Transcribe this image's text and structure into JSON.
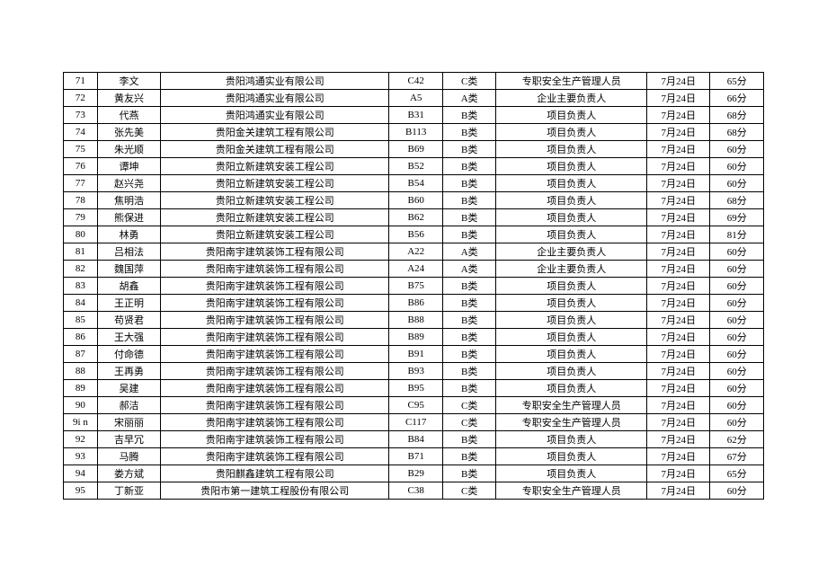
{
  "table": {
    "columns": [
      "idx",
      "name",
      "company",
      "code",
      "category",
      "role",
      "date",
      "score"
    ],
    "col_align": [
      "center",
      "center",
      "center",
      "center",
      "center",
      "center",
      "center",
      "center"
    ],
    "border_color": "#000000",
    "font_size": 11,
    "rows": [
      [
        "71",
        "李文",
        "贵阳鸿通实业有限公司",
        "C42",
        "C类",
        "专职安全生产管理人员",
        "7月24日",
        "65分"
      ],
      [
        "72",
        "黄友兴",
        "贵阳鸿通实业有限公司",
        "A5",
        "A类",
        "企业主要负责人",
        "7月24日",
        "66分"
      ],
      [
        "73",
        "代燕",
        "贵阳鸿通实业有限公司",
        "B31",
        "B类",
        "项目负责人",
        "7月24日",
        "68分"
      ],
      [
        "74",
        "张先美",
        "贵阳金关建筑工程有限公司",
        "B113",
        "B类",
        "项目负责人",
        "7月24日",
        "68分"
      ],
      [
        "75",
        "朱光顺",
        "贵阳金关建筑工程有限公司",
        "B69",
        "B类",
        "项目负责人",
        "7月24日",
        "60分"
      ],
      [
        "76",
        "谭坤",
        "贵阳立新建筑安装工程公司",
        "B52",
        "B类",
        "项目负责人",
        "7月24日",
        "60分"
      ],
      [
        "77",
        "赵兴尧",
        "贵阳立新建筑安装工程公司",
        "B54",
        "B类",
        "项目负责人",
        "7月24日",
        "60分"
      ],
      [
        "78",
        "焦明浩",
        "贵阳立新建筑安装工程公司",
        "B60",
        "B类",
        "项目负责人",
        "7月24日",
        "68分"
      ],
      [
        "79",
        "熊保进",
        "贵阳立新建筑安装工程公司",
        "B62",
        "B类",
        "项目负责人",
        "7月24日",
        "69分"
      ],
      [
        "80",
        "林勇",
        "贵阳立新建筑安装工程公司",
        "B56",
        "B类",
        "项目负责人",
        "7月24日",
        "81分"
      ],
      [
        "81",
        "吕相法",
        "贵阳南宇建筑装饰工程有限公司",
        "A22",
        "A类",
        "企业主要负责人",
        "7月24日",
        "60分"
      ],
      [
        "82",
        "魏国萍",
        "贵阳南宇建筑装饰工程有限公司",
        "A24",
        "A类",
        "企业主要负责人",
        "7月24日",
        "60分"
      ],
      [
        "83",
        "胡鑫",
        "贵阳南宇建筑装饰工程有限公司",
        "B75",
        "B类",
        "项目负责人",
        "7月24日",
        "60分"
      ],
      [
        "84",
        "王正明",
        "贵阳南宇建筑装饰工程有限公司",
        "B86",
        "B类",
        "项目负责人",
        "7月24日",
        "60分"
      ],
      [
        "85",
        "苟贤君",
        "贵阳南宇建筑装饰工程有限公司",
        "B88",
        "B类",
        "项目负责人",
        "7月24日",
        "60分"
      ],
      [
        "86",
        "王大强",
        "贵阳南宇建筑装饰工程有限公司",
        "B89",
        "B类",
        "项目负责人",
        "7月24日",
        "60分"
      ],
      [
        "87",
        "付命德",
        "贵阳南宇建筑装饰工程有限公司",
        "B91",
        "B类",
        "项目负责人",
        "7月24日",
        "60分"
      ],
      [
        "88",
        "王再勇",
        "贵阳南宇建筑装饰工程有限公司",
        "B93",
        "B类",
        "项目负责人",
        "7月24日",
        "60分"
      ],
      [
        "89",
        "吴建",
        "贵阳南宇建筑装饰工程有限公司",
        "B95",
        "B类",
        "项目负责人",
        "7月24日",
        "60分"
      ],
      [
        "90",
        "郝洁",
        "贵阳南宇建筑装饰工程有限公司",
        "C95",
        "C类",
        "专职安全生产管理人员",
        "7月24日",
        "60分"
      ],
      [
        "9i n",
        "宋丽丽",
        "贵阳南宇建筑装饰工程有限公司",
        "C117",
        "C类",
        "专职安全生产管理人员",
        "7月24日",
        "60分"
      ],
      [
        "92",
        "吉早冗",
        "贵阳南宇建筑装饰工程有限公司",
        "B84",
        "B类",
        "项目负责人",
        "7月24日",
        "62分"
      ],
      [
        "93",
        "马腾",
        "贵阳南宇建筑装饰工程有限公司",
        "B71",
        "B类",
        "项目负责人",
        "7月24日",
        "67分"
      ],
      [
        "94",
        "娄方斌",
        "贵阳麒鑫建筑工程有限公司",
        "B29",
        "B类",
        "项目负责人",
        "7月24日",
        "65分"
      ],
      [
        "95",
        "丁新亚",
        "贵阳市第一建筑工程股份有限公司",
        "C38",
        "C类",
        "专职安全生产管理人员",
        "7月24日",
        "60分"
      ]
    ]
  }
}
